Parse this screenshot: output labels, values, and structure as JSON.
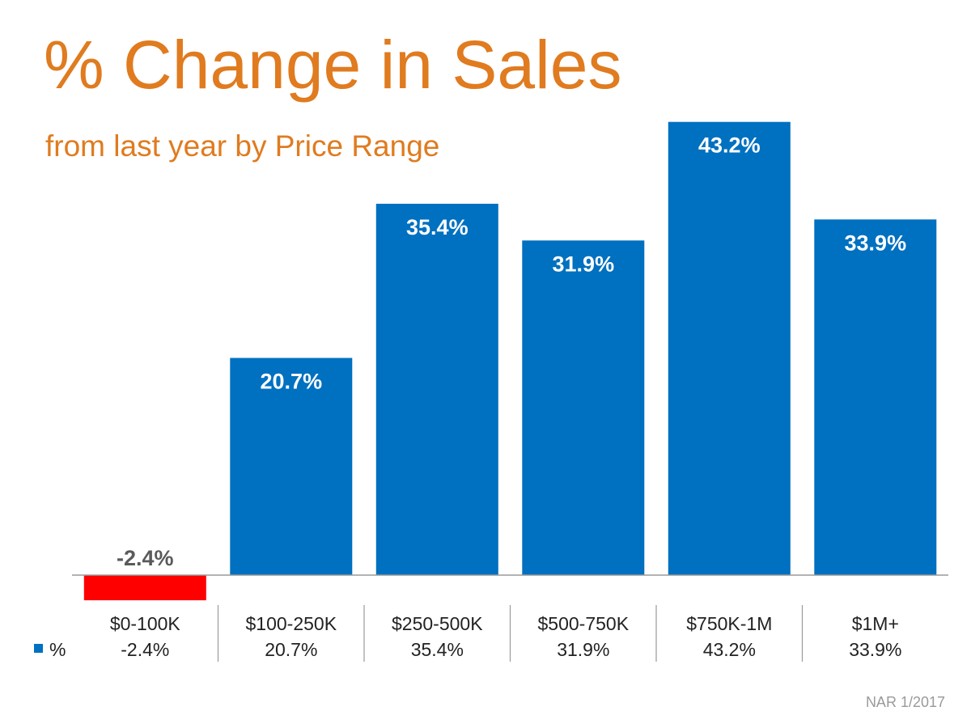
{
  "title": "% Change in Sales",
  "subtitle": "from last year by Price Range",
  "source": "NAR 1/2017",
  "colors": {
    "title": "#E07B1F",
    "positive_bar": "#0070C0",
    "negative_bar": "#FF0000",
    "positive_label": "#ffffff",
    "negative_label": "#5a5a5a",
    "table_text": "#222222",
    "divider": "#9a9a9a"
  },
  "chart_data": {
    "type": "bar",
    "categories": [
      "$0-100K",
      "$100-250K",
      "$250-500K",
      "$500-750K",
      "$750K-1M",
      "$1M+"
    ],
    "series": [
      {
        "name": "%",
        "values": [
          -2.4,
          20.7,
          35.4,
          31.9,
          43.2,
          33.9
        ],
        "labels": [
          "-2.4%",
          "20.7%",
          "35.4%",
          "31.9%",
          "43.2%",
          "33.9%"
        ]
      }
    ],
    "legend_position": "data-table-left",
    "grid": false
  }
}
